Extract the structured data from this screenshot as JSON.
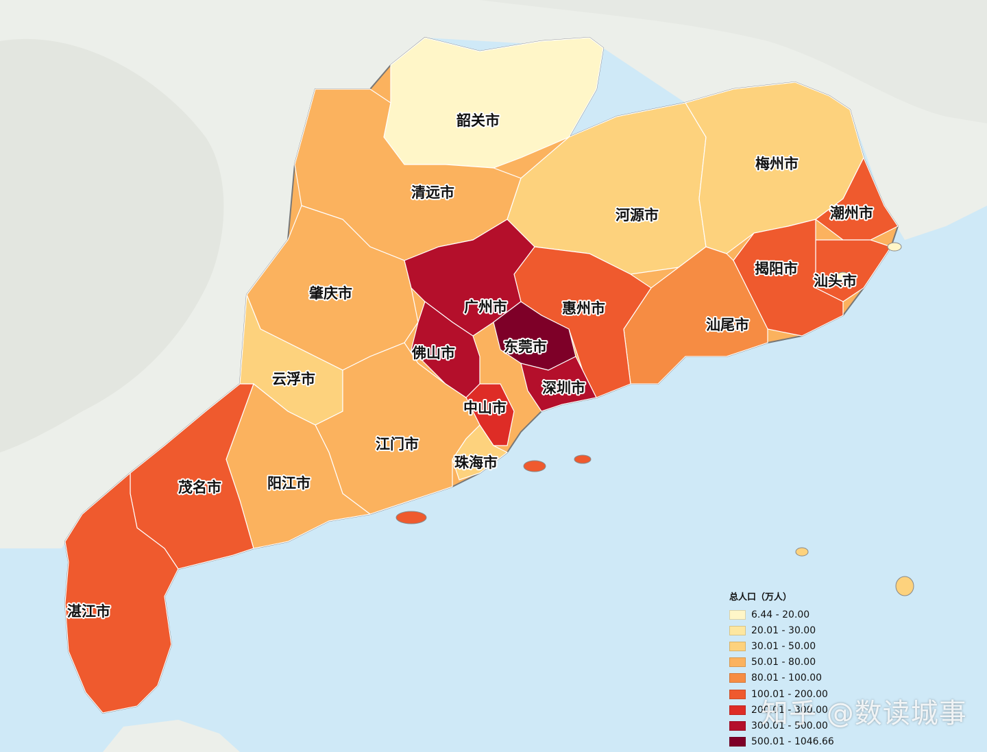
{
  "map": {
    "colors": {
      "sea": "#cfe9f7",
      "land_outside": "#ecefea",
      "terrain": "#e2e6df",
      "province_border": "#777777",
      "county_border": "#ffffff"
    },
    "cities": [
      {
        "name": "韶关市",
        "class": 0
      },
      {
        "name": "梅州市",
        "class": 2
      },
      {
        "name": "清远市",
        "class": 3
      },
      {
        "name": "河源市",
        "class": 2
      },
      {
        "name": "潮州市",
        "class": 5
      },
      {
        "name": "揭阳市",
        "class": 5
      },
      {
        "name": "汕头市",
        "class": 5
      },
      {
        "name": "肇庆市",
        "class": 3
      },
      {
        "name": "广州市",
        "class": 7
      },
      {
        "name": "惠州市",
        "class": 5
      },
      {
        "name": "汕尾市",
        "class": 4
      },
      {
        "name": "佛山市",
        "class": 7
      },
      {
        "name": "东莞市",
        "class": 8
      },
      {
        "name": "云浮市",
        "class": 2
      },
      {
        "name": "深圳市",
        "class": 7
      },
      {
        "name": "中山市",
        "class": 6
      },
      {
        "name": "江门市",
        "class": 3
      },
      {
        "name": "珠海市",
        "class": 2
      },
      {
        "name": "茂名市",
        "class": 5
      },
      {
        "name": "阳江市",
        "class": 3
      },
      {
        "name": "湛江市",
        "class": 5
      }
    ]
  },
  "legend": {
    "title": "总人口（万人）",
    "items": [
      {
        "label": "6.44 - 20.00",
        "color": "#fff6c8"
      },
      {
        "label": "20.01 - 30.00",
        "color": "#fde7a0"
      },
      {
        "label": "30.01 - 50.00",
        "color": "#fdd27d"
      },
      {
        "label": "50.01 - 80.00",
        "color": "#fbb25e"
      },
      {
        "label": "80.01 - 100.00",
        "color": "#f68c43"
      },
      {
        "label": "100.01 - 200.00",
        "color": "#ef5a2e"
      },
      {
        "label": "200.01 - 300.00",
        "color": "#de2c26"
      },
      {
        "label": "300.01 - 500.00",
        "color": "#b40f2b"
      },
      {
        "label": "500.01 - 1046.66",
        "color": "#7e0028"
      }
    ]
  },
  "watermark": "知乎 @数读城事"
}
